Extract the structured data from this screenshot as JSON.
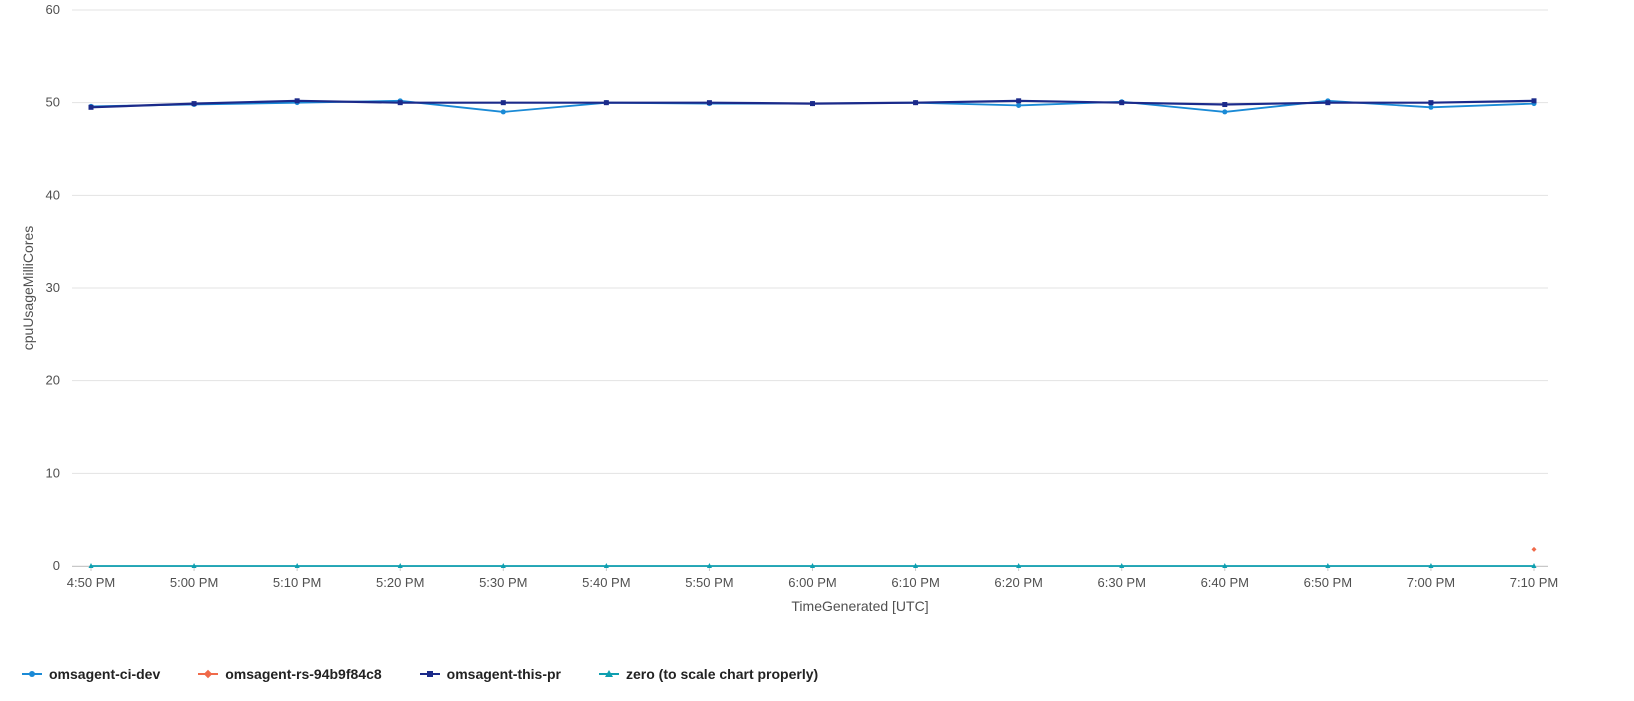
{
  "chart_data": {
    "type": "line",
    "xlabel": "TimeGenerated [UTC]",
    "ylabel": "cpuUsageMilliCores",
    "ylim": [
      0,
      60
    ],
    "yticks": [
      "0",
      "10",
      "20",
      "30",
      "40",
      "50",
      "60"
    ],
    "categories": [
      "4:50 PM",
      "5:00 PM",
      "5:10 PM",
      "5:20 PM",
      "5:30 PM",
      "5:40 PM",
      "5:50 PM",
      "6:00 PM",
      "6:10 PM",
      "6:20 PM",
      "6:30 PM",
      "6:40 PM",
      "6:50 PM",
      "7:00 PM",
      "7:10 PM"
    ],
    "grid": true,
    "legend_position": "bottom-left",
    "series": [
      {
        "name": "omsagent-ci-dev",
        "color": "#1a8ad6",
        "marker": "circle",
        "values": [
          49.6,
          49.8,
          50.0,
          50.2,
          49.0,
          50.0,
          49.9,
          49.9,
          50.0,
          49.7,
          50.1,
          49.0,
          50.2,
          49.5,
          49.9
        ]
      },
      {
        "name": "omsagent-rs-94b9f84c8",
        "color": "#f06a4a",
        "marker": "diamond",
        "values": [
          null,
          null,
          null,
          null,
          null,
          null,
          null,
          null,
          null,
          null,
          null,
          null,
          null,
          null,
          1.8
        ]
      },
      {
        "name": "omsagent-this-pr",
        "color": "#1b2a8a",
        "marker": "square",
        "values": [
          49.5,
          49.9,
          50.2,
          50.0,
          50.0,
          50.0,
          50.0,
          49.9,
          50.0,
          50.2,
          50.0,
          49.8,
          50.0,
          50.0,
          50.2
        ]
      },
      {
        "name": "zero (to scale chart properly)",
        "color": "#0e9fb0",
        "marker": "triangle",
        "values": [
          0,
          0,
          0,
          0,
          0,
          0,
          0,
          0,
          0,
          0,
          0,
          0,
          0,
          0,
          0
        ]
      }
    ]
  }
}
